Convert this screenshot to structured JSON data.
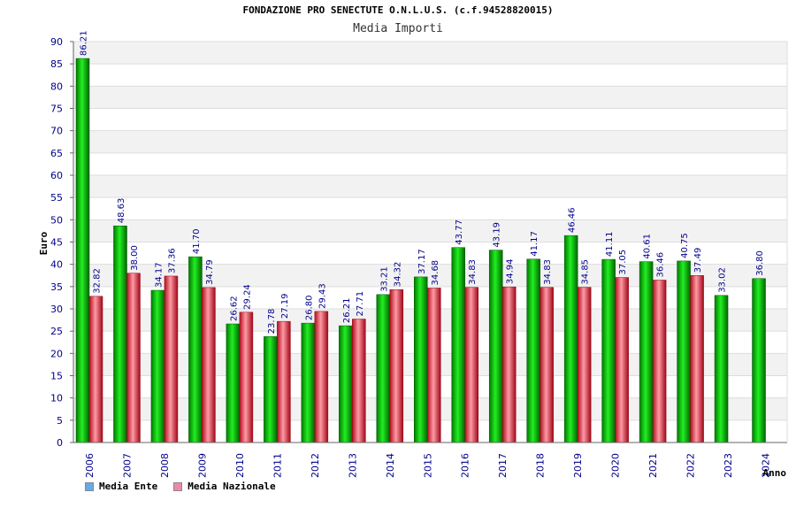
{
  "chart_data": {
    "type": "bar",
    "title": "FONDAZIONE PRO SENECTUTE O.N.L.U.S. (c.f.94528820015)",
    "subtitle": "Media Importi",
    "xlabel": "Anno",
    "ylabel": "Euro",
    "ylim": [
      0,
      90
    ],
    "yticks": [
      0,
      5,
      10,
      15,
      20,
      25,
      30,
      35,
      40,
      45,
      50,
      55,
      60,
      65,
      70,
      75,
      80,
      85,
      90
    ],
    "categories": [
      "2006",
      "2007",
      "2008",
      "2009",
      "2010",
      "2011",
      "2012",
      "2013",
      "2014",
      "2015",
      "2016",
      "2017",
      "2018",
      "2019",
      "2020",
      "2021",
      "2022",
      "2023",
      "2024"
    ],
    "series": [
      {
        "name": "Media Ente",
        "color": "#00aa00",
        "values": [
          86.21,
          48.63,
          34.17,
          41.7,
          26.62,
          23.78,
          26.8,
          26.21,
          33.21,
          37.17,
          43.77,
          43.19,
          41.17,
          46.46,
          41.11,
          40.61,
          40.75,
          33.02,
          36.8
        ]
      },
      {
        "name": "Media Nazionale",
        "color": "#dd2233",
        "values": [
          32.82,
          38.0,
          37.36,
          34.79,
          29.24,
          27.19,
          29.43,
          27.71,
          34.32,
          34.68,
          34.83,
          34.94,
          34.83,
          34.85,
          37.05,
          36.46,
          37.49,
          null,
          null
        ]
      }
    ],
    "value_labels": {
      "Media Ente": [
        "86.21",
        "48.63",
        "34.17",
        "41.70",
        "26.62",
        "23.78",
        "26.80",
        "26.21",
        "33.21",
        "37.17",
        "43.77",
        "43.19",
        "41.17",
        "46.46",
        "41.11",
        "40.61",
        "40.75",
        "33.02",
        "36.80"
      ],
      "Media Nazionale": [
        "32.82",
        "38.00",
        "37.36",
        "34.79",
        "29.24",
        "27.19",
        "29.43",
        "27.71",
        "34.32",
        "34.68",
        "34.83",
        "34.94",
        "34.83",
        "34.85",
        "37.05",
        "36.46",
        "37.49",
        null,
        null
      ]
    },
    "legend": [
      {
        "label": "Media Ente",
        "color": "#66aaee"
      },
      {
        "label": "Media Nazionale",
        "color": "#ee88aa"
      }
    ],
    "legend_position": "bottom-left",
    "grid": true
  }
}
